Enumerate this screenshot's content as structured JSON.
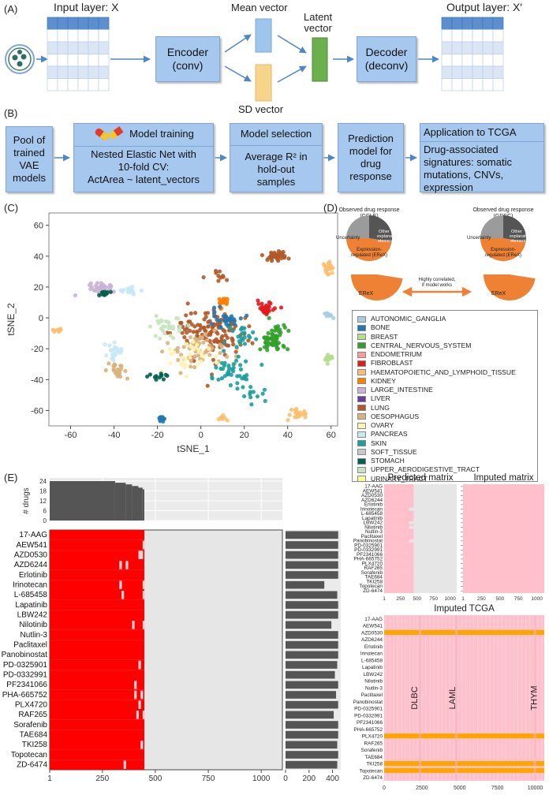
{
  "panel_labels": {
    "a": "(A)",
    "b": "(B)",
    "c": "(C)",
    "d": "(D)",
    "e": "(E)"
  },
  "panel_a": {
    "input_label": "Input layer: X",
    "output_label": "Output layer: X′",
    "encoder": [
      "Encoder",
      "(conv)"
    ],
    "decoder": [
      "Decoder",
      "(deconv)"
    ],
    "mean_label": "Mean vector",
    "sd_label": "SD vector",
    "latent_label": [
      "Latent",
      "vector"
    ],
    "colors": {
      "grid_dark": "#5b8fce",
      "grid_light": "#dbe6f4",
      "latent": "#6ab04c",
      "mean": "#9ec5ec",
      "sd": "#f7d48b"
    }
  },
  "panel_b": {
    "pool": [
      "Pool of",
      "trained",
      "VAE",
      "models"
    ],
    "training_title": "Model training",
    "training_body": [
      "Nested Elastic Net with",
      "10-fold CV:",
      "ActArea ~ latent_vectors"
    ],
    "selection_title": "Model selection",
    "selection_body": [
      "Average R² in",
      "hold-out",
      "samples"
    ],
    "prediction": [
      "Prediction",
      "model for",
      "drug",
      "response"
    ],
    "application_title": "Application to TCGA",
    "application_body": [
      "Drug-associated",
      "signatures: somatic",
      "mutations, CNVs,",
      "expression"
    ]
  },
  "panel_d": {
    "ccle_title": [
      "Observed drug response",
      "(CCLE)"
    ],
    "gdsc_title": [
      "Observed drug response",
      "(GDSC)"
    ],
    "pie_uncertainty": "Uncertainty",
    "pie_other": [
      "Other",
      "explanatory",
      "elements"
    ],
    "pie_expr": [
      "Expression-",
      "regulated (EReX)"
    ],
    "erex": "EReX",
    "correlated": [
      "Highly correlated,",
      "if model works"
    ],
    "colors": {
      "orange": "#ee8134",
      "grey": "#9b9b9b",
      "dark": "#555555"
    }
  },
  "chart_data": [
    {
      "type": "scatter",
      "panel": "C",
      "xlabel": "tSNE_1",
      "ylabel": "tSNE_2",
      "xticks": [
        -60,
        -40,
        -20,
        0,
        20,
        40,
        60
      ],
      "yticks": [
        -60,
        -40,
        -20,
        0,
        20,
        40,
        60
      ],
      "xlim": [
        -70,
        63
      ],
      "ylim": [
        -70,
        68
      ],
      "legend": [
        {
          "name": "AUTONOMIC_GANGLIA",
          "color": "#a6cee3"
        },
        {
          "name": "BONE",
          "color": "#1f78b4"
        },
        {
          "name": "BREAST",
          "color": "#b2df8a"
        },
        {
          "name": "CENTRAL_NERVOUS_SYSTEM",
          "color": "#33a02c"
        },
        {
          "name": "ENDOMETRIUM",
          "color": "#fb9a99"
        },
        {
          "name": "FIBROBLAST",
          "color": "#e31a1c"
        },
        {
          "name": "HAEMATOPOIETIC_AND_LYMPHOID_TISSUE",
          "color": "#fdbf6f"
        },
        {
          "name": "KIDNEY",
          "color": "#ff7f00"
        },
        {
          "name": "LARGE_INTESTINE",
          "color": "#cab2d6"
        },
        {
          "name": "LIVER",
          "color": "#6a3d9a"
        },
        {
          "name": "LUNG",
          "color": "#b15928"
        },
        {
          "name": "OESOPHAGUS",
          "color": "#d9b27c"
        },
        {
          "name": "OVARY",
          "color": "#fff3b0"
        },
        {
          "name": "PANCREAS",
          "color": "#c7e9f5"
        },
        {
          "name": "SKIN",
          "color": "#1b9e9e"
        },
        {
          "name": "SOFT_TISSUE",
          "color": "#c9c9c9"
        },
        {
          "name": "STOMACH",
          "color": "#00604f"
        },
        {
          "name": "UPPER_AERODIGESTIVE_TRACT",
          "color": "#c5e4c0"
        },
        {
          "name": "URINARY_TRACT",
          "color": "#fdfd96"
        }
      ],
      "clusters": [
        {
          "cx": 30,
          "cy": 6,
          "rx": 3,
          "ry": 3,
          "n": 40,
          "color": "#e31a1c"
        },
        {
          "cx": 33,
          "cy": -14,
          "rx": 5,
          "ry": 7,
          "n": 70,
          "color": "#33a02c"
        },
        {
          "cx": 35,
          "cy": 40,
          "rx": 5,
          "ry": 3,
          "n": 40,
          "color": "#b15928"
        },
        {
          "cx": 59,
          "cy": 32,
          "rx": 2,
          "ry": 4,
          "n": 22,
          "color": "#fdbf6f"
        },
        {
          "cx": 59,
          "cy": 2,
          "rx": 2,
          "ry": 1.5,
          "n": 10,
          "color": "#a6cee3"
        },
        {
          "cx": 59,
          "cy": -26,
          "rx": 1.5,
          "ry": 2.5,
          "n": 12,
          "color": "#b2df8a"
        },
        {
          "cx": 45,
          "cy": -62,
          "rx": 3,
          "ry": 2,
          "n": 22,
          "color": "#fdbf6f"
        },
        {
          "cx": 10,
          "cy": -65,
          "rx": 2,
          "ry": 1,
          "n": 8,
          "color": "#fdbf6f"
        },
        {
          "cx": -18,
          "cy": -65,
          "rx": 1.5,
          "ry": 1.5,
          "n": 10,
          "color": "#1f78b4"
        },
        {
          "cx": -66,
          "cy": -8,
          "rx": 2,
          "ry": 1,
          "n": 8,
          "color": "#fdbf6f"
        },
        {
          "cx": 10,
          "cy": 10,
          "rx": 2,
          "ry": 3,
          "n": 20,
          "color": "#ff7f00"
        },
        {
          "cx": -45,
          "cy": 19,
          "rx": 5,
          "ry": 3,
          "n": 45,
          "color": "#cab2d6"
        },
        {
          "cx": -45,
          "cy": 16,
          "rx": 3,
          "ry": 2,
          "n": 12,
          "color": "#00604f"
        },
        {
          "cx": -33,
          "cy": 18,
          "rx": 3,
          "ry": 2,
          "n": 15,
          "color": "#c7e9f5"
        },
        {
          "cx": -38,
          "cy": -35,
          "rx": 4,
          "ry": 4,
          "n": 25,
          "color": "#d9b27c"
        },
        {
          "cx": -40,
          "cy": -22,
          "rx": 4,
          "ry": 5,
          "n": 25,
          "color": "#c7e9f5"
        },
        {
          "cx": 5,
          "cy": -10,
          "rx": 14,
          "ry": 14,
          "n": 140,
          "color": "#b15928"
        },
        {
          "cx": 0,
          "cy": -20,
          "rx": 12,
          "ry": 10,
          "n": 60,
          "color": "#d9b27c"
        },
        {
          "cx": 15,
          "cy": -35,
          "rx": 8,
          "ry": 8,
          "n": 40,
          "color": "#1b9e9e"
        },
        {
          "cx": -15,
          "cy": -5,
          "rx": 6,
          "ry": 6,
          "n": 30,
          "color": "#c5e4c0"
        },
        {
          "cx": 10,
          "cy": 0,
          "rx": 7,
          "ry": 5,
          "n": 25,
          "color": "#1f78b4"
        },
        {
          "cx": -5,
          "cy": -25,
          "rx": 10,
          "ry": 10,
          "n": 30,
          "color": "#fff3b0"
        },
        {
          "cx": 18,
          "cy": -12,
          "rx": 5,
          "ry": 6,
          "n": 20,
          "color": "#1b9e9e"
        },
        {
          "cx": 25,
          "cy": -50,
          "rx": 5,
          "ry": 5,
          "n": 12,
          "color": "#1b9e9e"
        },
        {
          "cx": -20,
          "cy": -38,
          "rx": 4,
          "ry": 3,
          "n": 12,
          "color": "#00604f"
        },
        {
          "cx": 7,
          "cy": 28,
          "rx": 6,
          "ry": 4,
          "n": 10,
          "color": "#b15928"
        }
      ]
    },
    {
      "type": "bar",
      "panel": "E-top",
      "ylabel": "# drugs",
      "yticks": [
        0,
        6,
        12,
        18,
        24
      ],
      "xlim": [
        1,
        1100
      ],
      "steps": [
        {
          "x": 0,
          "drugs": 24
        },
        {
          "x": 310,
          "drugs": 23
        },
        {
          "x": 360,
          "drugs": 22
        },
        {
          "x": 390,
          "drugs": 21
        },
        {
          "x": 420,
          "drugs": 20
        },
        {
          "x": 440,
          "drugs": 19
        },
        {
          "x": 448,
          "drugs": 0
        }
      ]
    },
    {
      "type": "heatmap",
      "panel": "E-main",
      "drugs": [
        "17-AAG",
        "AEW541",
        "AZD0530",
        "AZD6244",
        "Erlotinib",
        "Irinotecan",
        "L-685458",
        "Lapatinib",
        "LBW242",
        "Nilotinib",
        "Nutlin-3",
        "Paclitaxel",
        "Panobinostat",
        "PD-0325901",
        "PD-0332991",
        "PF2341066",
        "PHA-665752",
        "PLX4720",
        "RAF265",
        "Sorafenib",
        "TAE684",
        "TKI258",
        "Topotecan",
        "ZD-6474"
      ],
      "xticks": [
        1,
        250,
        500,
        750,
        1000
      ],
      "xlim": [
        1,
        1100
      ],
      "filled_to": 448,
      "gaps": [
        [],
        [
          440
        ],
        [
          420,
          430
        ],
        [
          330,
          360
        ],
        [],
        [
          330,
          440
        ],
        [
          340,
          440
        ],
        [],
        [],
        [
          390,
          440
        ],
        [],
        [],
        [],
        [
          420
        ],
        [],
        [
          400
        ],
        [
          400,
          430
        ],
        [
          420
        ],
        [
          410,
          440
        ],
        [],
        [],
        [
          430
        ],
        [],
        [
          350
        ]
      ],
      "bar_values": [
        448,
        448,
        448,
        448,
        448,
        330,
        440,
        448,
        448,
        390,
        448,
        448,
        448,
        440,
        420,
        448,
        430,
        448,
        410,
        448,
        448,
        440,
        448,
        440
      ],
      "bar_xticks": [
        0,
        200,
        400
      ],
      "colors": {
        "filled": "#ff0000",
        "missing": "#e6e6e6",
        "bar": "#555555"
      }
    },
    {
      "type": "heatmap",
      "panel": "E-predicted",
      "title": "Predicted matrix",
      "drugs": [
        "17-AAG",
        "AEW541",
        "AZD0530",
        "AZD6244",
        "Erlotinib",
        "Irinotecan",
        "L-685458",
        "Lapatinib",
        "LBW242",
        "Nilotinib",
        "Nutlin-3",
        "Paclitaxel",
        "Panobinostat",
        "PD-0325901",
        "PD-0332991",
        "PF2341066",
        "PHA-665752",
        "PLX4720",
        "RAF265",
        "Sorafenib",
        "TAE684",
        "TKI258",
        "Topotecan",
        "ZD-6474"
      ],
      "xticks": [
        1,
        250,
        500,
        750,
        1000
      ],
      "xlim": [
        1,
        1100
      ],
      "filled_to": 448,
      "colors": {
        "filled": "#ffc0cb",
        "missing": "#e6e6e6"
      }
    },
    {
      "type": "heatmap",
      "panel": "E-imputed",
      "title": "Imputed matrix",
      "xticks": [
        1,
        250,
        500,
        750,
        1000
      ],
      "xlim": [
        1,
        1100
      ],
      "colors": {
        "filled": "#ffc0cb"
      }
    },
    {
      "type": "heatmap",
      "panel": "E-tcga",
      "title": "Imputed TCGA",
      "drugs": [
        "17-AAG",
        "AEW541",
        "AZD0530",
        "AZD6244",
        "Erlotinib",
        "Irinotecan",
        "L-685458",
        "Lapatinib",
        "LBW242",
        "Nilotinib",
        "Nutlin-3",
        "Paclitaxel",
        "Panobinostat",
        "PD-0325901",
        "PD-0332991",
        "PF2341066",
        "PHA-665752",
        "PLX4720",
        "RAF265",
        "Sorafenib",
        "TAE684",
        "TKI258",
        "Topotecan",
        "ZD-6474"
      ],
      "xticks": [
        0,
        2500,
        5000,
        7500,
        10000
      ],
      "xlim": [
        0,
        10600
      ],
      "highlight_rows": [
        "AZD0530",
        "PLX4720",
        "TKI258",
        "Topotecan"
      ],
      "annotations": [
        {
          "label": "DLBC",
          "x": 2200
        },
        {
          "label": "LAML",
          "x": 4700
        },
        {
          "label": "THYM",
          "x": 10100
        }
      ],
      "colors": {
        "base": "#ffc0cb",
        "highlight": "#ffa500"
      }
    }
  ]
}
